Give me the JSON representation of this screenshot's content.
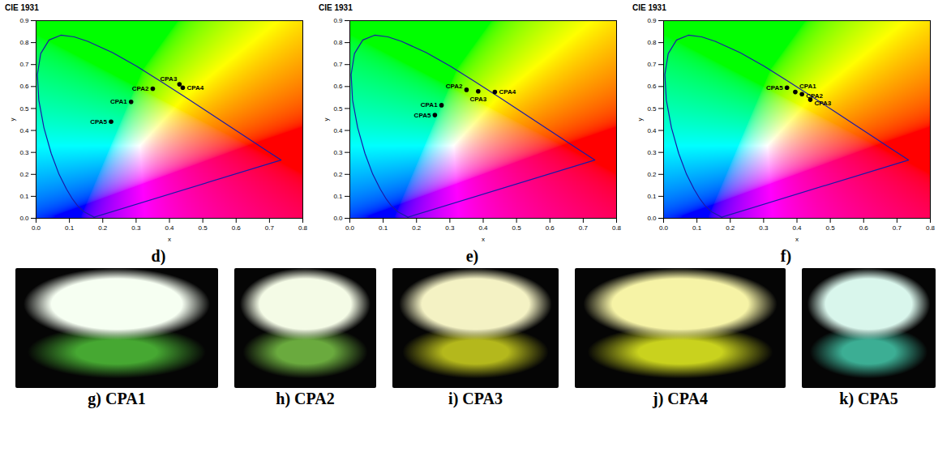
{
  "chart_data": [
    {
      "type": "scatter",
      "title": "CIE 1931",
      "panel": "d)",
      "x_label": "x",
      "y_label": "y",
      "xlim": [
        0,
        0.8
      ],
      "ylim": [
        0,
        0.9
      ],
      "xticks": [
        {
          "value": 0,
          "label": "0.0"
        },
        0.1,
        0.2,
        0.3,
        0.4,
        0.5,
        0.6,
        0.7,
        0.8
      ],
      "yticks": [
        {
          "value": 0,
          "label": "0.0"
        },
        0.1,
        0.2,
        0.3,
        0.4,
        0.5,
        0.6,
        0.7,
        0.8,
        0.9
      ],
      "labels": [
        "CPA1",
        "CPA2",
        "CPA3",
        "CPA4",
        "CPA5"
      ],
      "x": [
        0.285,
        0.35,
        0.43,
        0.44,
        0.225
      ],
      "y": [
        0.53,
        0.59,
        0.61,
        0.595,
        0.44
      ],
      "color": "#000000",
      "marker": "circle",
      "locus": {
        "color": "#1a1aa8",
        "x": [
          0.1741,
          0.144,
          0.1241,
          0.1096,
          0.0913,
          0.0687,
          0.0454,
          0.0235,
          0.0082,
          0.0039,
          0.0139,
          0.0389,
          0.0743,
          0.1142,
          0.1547,
          0.2296,
          0.3016,
          0.3731,
          0.4441,
          0.5125,
          0.5752,
          0.627,
          0.6915,
          0.7347
        ],
        "y": [
          0.005,
          0.0297,
          0.0578,
          0.0868,
          0.1327,
          0.2007,
          0.295,
          0.4127,
          0.5384,
          0.6548,
          0.7502,
          0.812,
          0.8338,
          0.8262,
          0.8059,
          0.7543,
          0.6923,
          0.6245,
          0.5547,
          0.4866,
          0.4242,
          0.3725,
          0.3083,
          0.2653
        ]
      }
    },
    {
      "type": "scatter",
      "title": "CIE 1931",
      "panel": "e)",
      "x_label": "x",
      "y_label": "y",
      "xlim": [
        0,
        0.8
      ],
      "ylim": [
        0,
        0.9
      ],
      "xticks": [
        {
          "value": 0,
          "label": "0.0"
        },
        0.1,
        0.2,
        0.3,
        0.4,
        0.5,
        0.6,
        0.7,
        0.8
      ],
      "yticks": [
        {
          "value": 0,
          "label": "0.0"
        },
        0.1,
        0.2,
        0.3,
        0.4,
        0.5,
        0.6,
        0.7,
        0.8,
        0.9
      ],
      "labels": [
        "CPA1",
        "CPA2",
        "CPA3",
        "CPA4",
        "CPA5"
      ],
      "x": [
        0.275,
        0.35,
        0.385,
        0.435,
        0.255
      ],
      "y": [
        0.515,
        0.585,
        0.578,
        0.575,
        0.47
      ],
      "color": "#000000",
      "marker": "circle",
      "locus": {
        "color": "#1a1aa8",
        "x": [
          0.1741,
          0.144,
          0.1241,
          0.1096,
          0.0913,
          0.0687,
          0.0454,
          0.0235,
          0.0082,
          0.0039,
          0.0139,
          0.0389,
          0.0743,
          0.1142,
          0.1547,
          0.2296,
          0.3016,
          0.3731,
          0.4441,
          0.5125,
          0.5752,
          0.627,
          0.6915,
          0.7347
        ],
        "y": [
          0.005,
          0.0297,
          0.0578,
          0.0868,
          0.1327,
          0.2007,
          0.295,
          0.4127,
          0.5384,
          0.6548,
          0.7502,
          0.812,
          0.8338,
          0.8262,
          0.8059,
          0.7543,
          0.6923,
          0.6245,
          0.5547,
          0.4866,
          0.4242,
          0.3725,
          0.3083,
          0.2653
        ]
      }
    },
    {
      "type": "scatter",
      "title": "CIE 1931",
      "panel": "f)",
      "x_label": "x",
      "y_label": "y",
      "xlim": [
        0,
        0.8
      ],
      "ylim": [
        0,
        0.9
      ],
      "xticks": [
        {
          "value": 0,
          "label": "0.0"
        },
        0.1,
        0.2,
        0.3,
        0.4,
        0.5,
        0.6,
        0.7,
        0.8
      ],
      "yticks": [
        {
          "value": 0,
          "label": "0.0"
        },
        0.1,
        0.2,
        0.3,
        0.4,
        0.5,
        0.6,
        0.7,
        0.8,
        0.9
      ],
      "labels": [
        "CPA1",
        "CPA2",
        "CPA3",
        "CPA5"
      ],
      "x": [
        0.395,
        0.415,
        0.44,
        0.37
      ],
      "y": [
        0.575,
        0.565,
        0.54,
        0.595
      ],
      "color": "#000000",
      "marker": "circle",
      "locus": {
        "color": "#1a1aa8",
        "x": [
          0.1741,
          0.144,
          0.1241,
          0.1096,
          0.0913,
          0.0687,
          0.0454,
          0.0235,
          0.0082,
          0.0039,
          0.0139,
          0.0389,
          0.0743,
          0.1142,
          0.1547,
          0.2296,
          0.3016,
          0.3731,
          0.4441,
          0.5125,
          0.5752,
          0.627,
          0.6915,
          0.7347
        ],
        "y": [
          0.005,
          0.0297,
          0.0578,
          0.0868,
          0.1327,
          0.2007,
          0.295,
          0.4127,
          0.5384,
          0.6548,
          0.7502,
          0.812,
          0.8338,
          0.8262,
          0.8059,
          0.7543,
          0.6923,
          0.6245,
          0.5547,
          0.4866,
          0.4242,
          0.3725,
          0.3083,
          0.2653
        ]
      }
    }
  ],
  "photos": [
    {
      "label": "g) CPA1",
      "colors": [
        "#f6fff2",
        "#46a832"
      ]
    },
    {
      "label": "h) CPA2",
      "colors": [
        "#f4fbe6",
        "#6aaa3e"
      ]
    },
    {
      "label": "i) CPA3",
      "colors": [
        "#f4f2c4",
        "#b4b81c"
      ]
    },
    {
      "label": "j) CPA4",
      "colors": [
        "#f6f3a6",
        "#c9d21e"
      ]
    },
    {
      "label": "k) CPA5",
      "colors": [
        "#d9f6ec",
        "#3cae94"
      ]
    }
  ]
}
